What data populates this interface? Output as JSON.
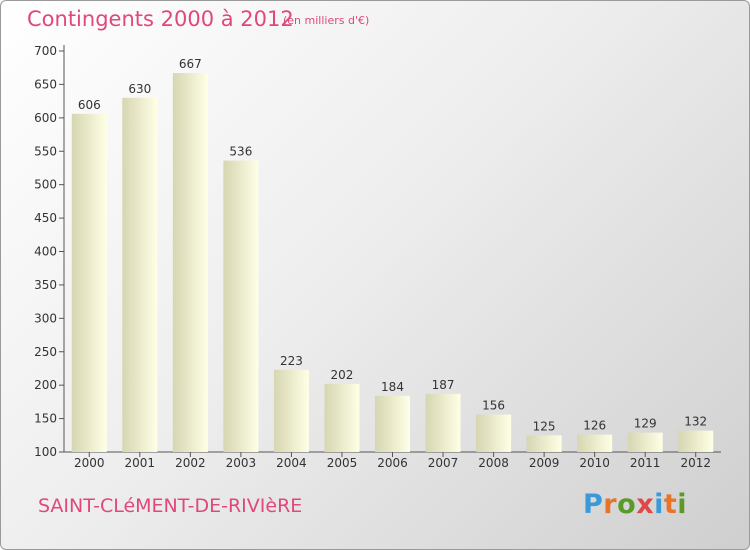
{
  "header": {
    "title": "Contingents 2000 à 2012",
    "subtitle": "(en milliers d'€)"
  },
  "footer": {
    "commune": "SAINT-CLéMENT-DE-RIVIèRE",
    "brand": "Proxiti"
  },
  "colors": {
    "title": "#e0487a",
    "bar_light": "#ffffe6",
    "bar_dark": "#d6d6b2",
    "axis": "#555555",
    "brand_letters": [
      "#3a9ad9",
      "#e8742a",
      "#5a9a2a",
      "#e04848",
      "#3a9ad9",
      "#e8742a",
      "#5a9a2a"
    ]
  },
  "chart_data": {
    "type": "bar",
    "categories": [
      "2000",
      "2001",
      "2002",
      "2003",
      "2004",
      "2005",
      "2006",
      "2007",
      "2008",
      "2009",
      "2010",
      "2011",
      "2012"
    ],
    "values": [
      606,
      630,
      667,
      536,
      223,
      202,
      184,
      187,
      156,
      125,
      126,
      129,
      132
    ],
    "title": "Contingents 2000 à 2012",
    "subtitle": "(en milliers d'€)",
    "ylim": [
      100,
      700
    ],
    "yticks": [
      100,
      150,
      200,
      250,
      300,
      350,
      400,
      450,
      500,
      550,
      600,
      650,
      700
    ],
    "grid": false,
    "data_labels": true
  }
}
